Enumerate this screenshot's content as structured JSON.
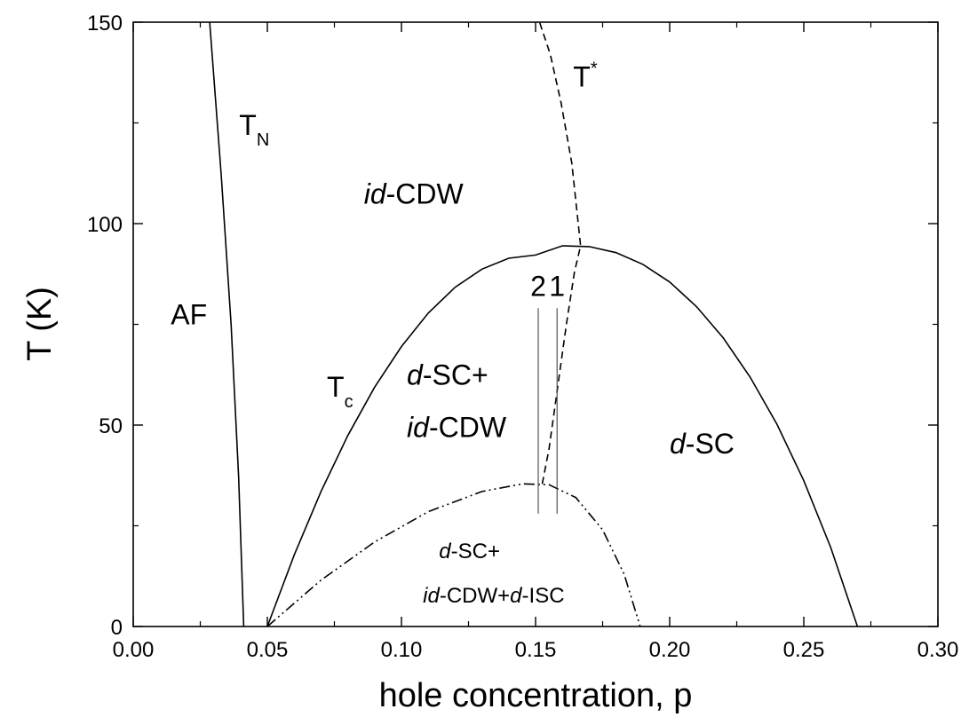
{
  "chart_data": {
    "type": "line",
    "title": "",
    "xlabel": "hole concentration, p",
    "ylabel": "T (K)",
    "xlim": [
      0.0,
      0.3
    ],
    "ylim": [
      0,
      150
    ],
    "x_ticks": [
      "0.00",
      "0.05",
      "0.10",
      "0.15",
      "0.20",
      "0.25",
      "0.30"
    ],
    "y_ticks": [
      "0",
      "50",
      "100",
      "150"
    ],
    "grid": false,
    "legend": "none",
    "series": [
      {
        "style": "solid",
        "label_main": "T",
        "label_sub": "N",
        "x": [
          0.0285,
          0.0328,
          0.0365,
          0.0393,
          0.0412
        ],
        "y": [
          150,
          112,
          75,
          37,
          0
        ]
      },
      {
        "style": "solid",
        "label_main": "T",
        "label_sub": "c",
        "x": [
          0.05,
          0.06,
          0.07,
          0.08,
          0.09,
          0.1,
          0.11,
          0.12,
          0.13,
          0.14,
          0.15,
          0.16,
          0.17,
          0.18,
          0.19,
          0.2,
          0.21,
          0.22,
          0.23,
          0.24,
          0.25,
          0.26,
          0.27
        ],
        "y": [
          0,
          17.7,
          33.5,
          47.4,
          59.4,
          69.5,
          77.8,
          84.2,
          88.7,
          91.4,
          92.2,
          94.5,
          94.3,
          92.8,
          89.9,
          85.5,
          79.4,
          71.6,
          61.9,
          50.2,
          36.2,
          19.7,
          0
        ]
      },
      {
        "style": "dashed",
        "label_main": "T",
        "label_sup": "*",
        "x": [
          0.1525,
          0.155,
          0.1575,
          0.1615,
          0.1645,
          0.1668,
          0.1635,
          0.1595,
          0.1555,
          0.1515
        ],
        "y": [
          35.4,
          44,
          56,
          75,
          88,
          94.5,
          115,
          130,
          142,
          150
        ]
      },
      {
        "style": "dash-dot-dot",
        "label_main": "",
        "x": [
          0.05,
          0.07,
          0.09,
          0.11,
          0.13,
          0.145,
          0.155,
          0.165,
          0.175,
          0.183,
          0.189
        ],
        "y": [
          0,
          11.5,
          21,
          28.5,
          33.5,
          35.4,
          35.2,
          32,
          24,
          13,
          0
        ]
      },
      {
        "style": "thin-vertical",
        "label_main": "2",
        "x": [
          0.151,
          0.151
        ],
        "y": [
          28,
          79
        ]
      },
      {
        "style": "thin-vertical",
        "label_main": "1",
        "x": [
          0.158,
          0.158
        ],
        "y": [
          28,
          79
        ]
      }
    ],
    "region_labels": [
      {
        "italic": "",
        "text": "AF",
        "x": 0.014,
        "y": 75
      },
      {
        "italic": "id",
        "text": "-CDW",
        "x": 0.086,
        "y": 105
      },
      {
        "italic": "d",
        "text": "-SC+",
        "x": 0.102,
        "y": 60
      },
      {
        "italic": "id",
        "text": "-CDW",
        "x": 0.102,
        "y": 47
      },
      {
        "italic": "d",
        "text": "-SC",
        "x": 0.2,
        "y": 43
      },
      {
        "italic": "d",
        "text": "-SC+",
        "x": 0.114,
        "y": 17
      },
      {
        "italic": "id",
        "text": "-CDW+",
        "italic2": "d",
        "text2": "-ISC",
        "x": 0.108,
        "y": 6
      }
    ]
  }
}
